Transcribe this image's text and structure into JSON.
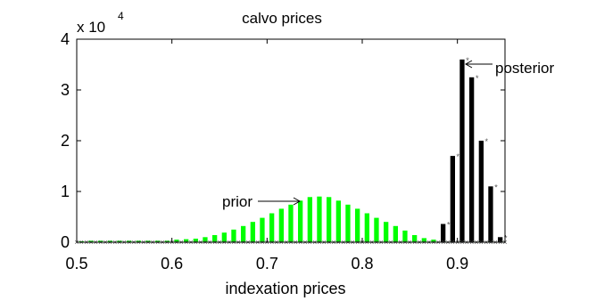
{
  "chart_data": {
    "type": "bar",
    "title": "calvo prices",
    "xlabel": "indexation prices",
    "ylabel": "",
    "y_multiplier_label": "x 10",
    "y_multiplier_exponent": "4",
    "xlim": [
      0.5,
      0.95
    ],
    "ylim": [
      0,
      40000
    ],
    "x_ticks": [
      "0.5",
      "0.6",
      "0.7",
      "0.8",
      "0.9"
    ],
    "y_ticks": [
      "0",
      "1",
      "2",
      "3",
      "4"
    ],
    "annotations": [
      {
        "text": "prior",
        "x": 0.735,
        "y": 8200
      },
      {
        "text": "posterior",
        "x": 0.915,
        "y": 35300
      }
    ],
    "series": [
      {
        "name": "prior",
        "color": "#00ff00",
        "bar_width": 0.005,
        "x": [
          0.505,
          0.515,
          0.525,
          0.535,
          0.545,
          0.555,
          0.565,
          0.575,
          0.585,
          0.595,
          0.605,
          0.615,
          0.625,
          0.635,
          0.645,
          0.655,
          0.665,
          0.675,
          0.685,
          0.695,
          0.705,
          0.715,
          0.725,
          0.735,
          0.745,
          0.755,
          0.765,
          0.775,
          0.785,
          0.795,
          0.805,
          0.815,
          0.825,
          0.835,
          0.845,
          0.855,
          0.865,
          0.875,
          0.885,
          0.895,
          0.905,
          0.915,
          0.925,
          0.935,
          0.945
        ],
        "values": [
          200,
          300,
          300,
          300,
          300,
          300,
          300,
          300,
          300,
          300,
          500,
          600,
          700,
          1000,
          1400,
          1900,
          2500,
          3200,
          4000,
          4800,
          5700,
          6600,
          7400,
          8200,
          8900,
          9000,
          8900,
          8200,
          7400,
          6600,
          5700,
          4800,
          4000,
          3200,
          2300,
          1400,
          800,
          500,
          300,
          200,
          200,
          200,
          200,
          200,
          200
        ]
      },
      {
        "name": "posterior",
        "color": "#000000",
        "bar_width": 0.005,
        "x": [
          0.885,
          0.895,
          0.905,
          0.915,
          0.925,
          0.935,
          0.945
        ],
        "values": [
          3600,
          17000,
          36000,
          32500,
          20000,
          11000,
          1000
        ]
      }
    ],
    "grid": false,
    "legend": "none"
  }
}
